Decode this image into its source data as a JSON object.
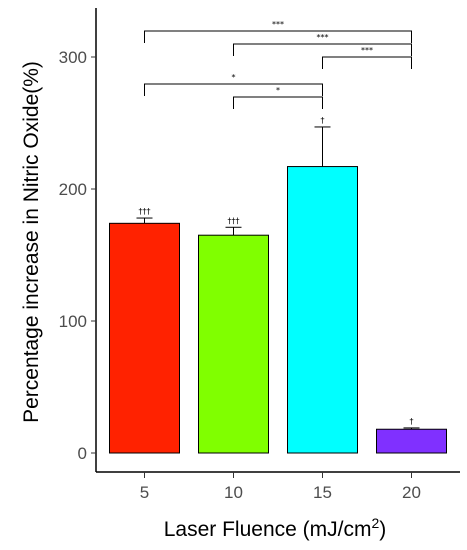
{
  "chart_data": {
    "type": "bar",
    "title": "",
    "xlabel": "Laser Fluence (mJ/cm",
    "xlabel_superscript": "2",
    "xlabel_suffix": ")",
    "ylabel": "Percentage increase in Nitric Oxide(%)",
    "categories": [
      "5",
      "10",
      "15",
      "20"
    ],
    "values": [
      174,
      165,
      217,
      18
    ],
    "errors": [
      4,
      6,
      30,
      1
    ],
    "colors": [
      "#ff2200",
      "#80ff00",
      "#00ffff",
      "#8030ff"
    ],
    "bar_labels": [
      "†††",
      "†††",
      "†",
      "†"
    ],
    "ylim": [
      0,
      330
    ],
    "yticks": [
      0,
      100,
      200,
      300
    ],
    "grid": false,
    "comparisons": [
      {
        "from": 0,
        "to": 3,
        "label": "***"
      },
      {
        "from": 1,
        "to": 3,
        "label": "***"
      },
      {
        "from": 2,
        "to": 3,
        "label": "***"
      },
      {
        "from": 0,
        "to": 2,
        "label": "*"
      },
      {
        "from": 1,
        "to": 2,
        "label": "*"
      }
    ]
  }
}
